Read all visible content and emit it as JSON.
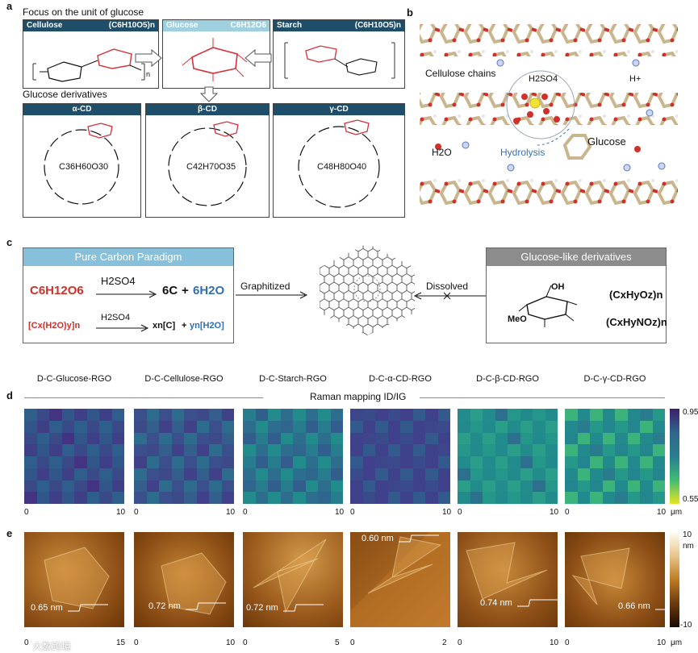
{
  "panel_a": {
    "letter": "a",
    "header": "Focus on the unit of glucose",
    "cellulose": {
      "name": "Cellulose",
      "formula": "(C6H10O5)n"
    },
    "glucose": {
      "name": "Glucose",
      "formula": "C6H12O6"
    },
    "starch": {
      "name": "Starch",
      "formula": "(C6H10O5)n"
    },
    "n_label": "n",
    "derivatives_header": "Glucose derivatives",
    "alpha_cd": {
      "name": "α-CD",
      "formula": "C36H60O30"
    },
    "beta_cd": {
      "name": "β-CD",
      "formula": "C42H70O35"
    },
    "gamma_cd": {
      "name": "γ-CD",
      "formula": "C48H80O40"
    }
  },
  "panel_b": {
    "letter": "b",
    "cellulose_chains": "Cellulose chains",
    "h2so4": "H2SO4",
    "hplus": "H+",
    "h2o": "H2O",
    "hydrolysis": "Hydrolysis",
    "glucose": "Glucose"
  },
  "panel_c": {
    "letter": "c",
    "left_title": "Pure Carbon Paradigm",
    "eq1_lhs": "C6H12O6",
    "eq1_reagent": "H2SO4",
    "eq1_rhs_c": "6C",
    "eq1_plus": "+",
    "eq1_rhs_w": "6H2O",
    "eq2_lhs": "[Cx(H2O)y]n",
    "eq2_reagent": "H2SO4",
    "eq2_rhs_c": "xn[C]",
    "eq2_plus": "+",
    "eq2_rhs_w": "yn[H2O]",
    "graphitized": "Graphitized",
    "dissolved": "Dissolved",
    "right_title": "Glucose-like derivatives",
    "meo": "MeO",
    "oh": "OH",
    "formula1": "(CxHyOz)n",
    "formula2": "(CxHyNOz)n"
  },
  "sample_titles": [
    "D-C-Glucose-RGO",
    "D-C-Cellulose-RGO",
    "D-C-Starch-RGO",
    "D-C-α-CD-RGO",
    "D-C-β-CD-RGO",
    "D-C-γ-CD-RGO"
  ],
  "panel_d": {
    "letter": "d",
    "title": "Raman mapping ID/IG",
    "colorbar_max": "0.95",
    "colorbar_min": "0.55",
    "tick_start": "0",
    "tick_end": "10",
    "unit": "μm",
    "colors": {
      "high": "#3b1f6e",
      "mid": "#277f8e",
      "low": "#e8e51f"
    }
  },
  "panel_e": {
    "letter": "e",
    "thicknesses": [
      "0.65 nm",
      "0.72 nm",
      "0.72 nm",
      "0.60 nm",
      "0.74 nm",
      "0.66 nm"
    ],
    "tick_start": "0",
    "tick_ends": [
      "15",
      "10",
      "5",
      "2",
      "10",
      "10"
    ],
    "unit": "μm",
    "colorbar_max": "10",
    "colorbar_unit": "nm",
    "colorbar_min": "-10"
  },
  "watermark": "大数跨境"
}
